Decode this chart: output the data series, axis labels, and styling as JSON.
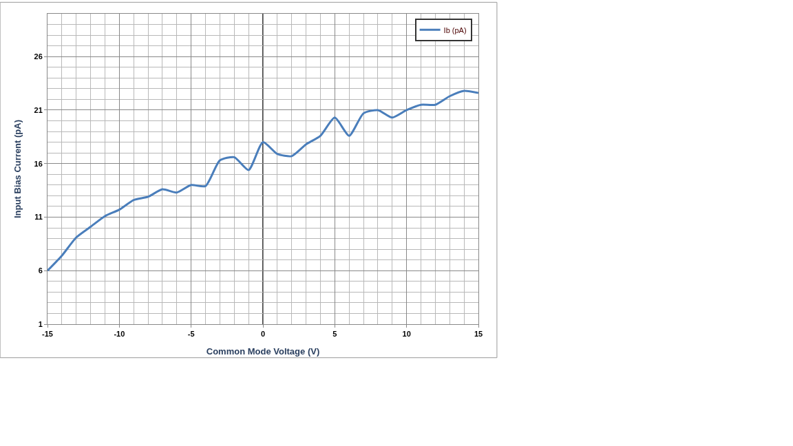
{
  "chart_data": {
    "type": "line",
    "xlabel": "Common Mode Voltage (V)",
    "ylabel": "Input Bias Current (pA)",
    "x": [
      -15,
      -14,
      -13,
      -12,
      -11,
      -10,
      -9,
      -8,
      -7,
      -6,
      -5,
      -4,
      -3,
      -2,
      -1,
      0,
      1,
      2,
      3,
      4,
      5,
      6,
      7,
      8,
      9,
      10,
      11,
      12,
      13,
      14,
      15
    ],
    "series": [
      {
        "name": "Ib (pA)",
        "color": "#4a7ebb",
        "values": [
          6.0,
          7.4,
          9.1,
          10.1,
          11.1,
          11.7,
          12.6,
          12.9,
          13.6,
          13.3,
          14.0,
          13.9,
          16.3,
          16.6,
          15.4,
          18.0,
          16.9,
          16.7,
          17.8,
          18.6,
          20.3,
          18.6,
          20.7,
          21.0,
          20.3,
          21.0,
          21.5,
          21.5,
          22.3,
          22.8,
          22.6
        ]
      }
    ],
    "xlim": [
      -15,
      15
    ],
    "xticks": [
      -15,
      -10,
      -5,
      0,
      5,
      10,
      15
    ],
    "ylim": [
      1,
      30
    ],
    "yticks": [
      1,
      6,
      11,
      16,
      21,
      26
    ],
    "ref_lines": [
      {
        "axis": "x",
        "value": 0,
        "color": "#000000"
      }
    ],
    "grid": true,
    "legend": "top right",
    "marker": "none",
    "line_style": "solid"
  }
}
